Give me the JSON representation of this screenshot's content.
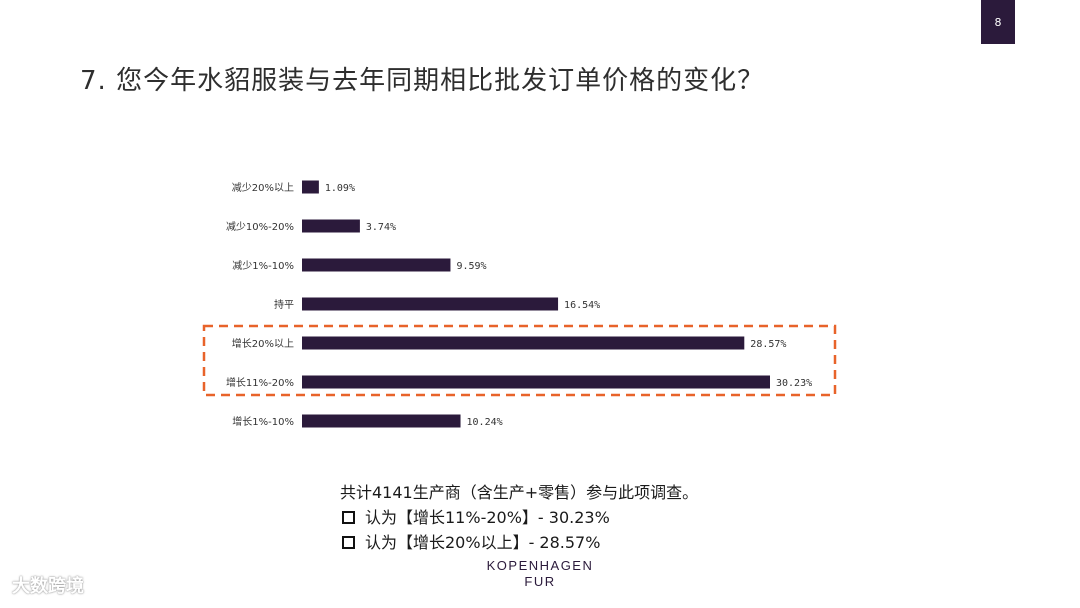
{
  "page": {
    "number": "8"
  },
  "slide": {
    "title": "7. 您今年水貂服装与去年同期相比批发订单价格的变化？"
  },
  "chart_data": {
    "type": "bar",
    "orientation": "horizontal",
    "categories": [
      "减少20%以上",
      "减少10%-20%",
      "减少1%-10%",
      "持平",
      "增长20%以上",
      "增长11%-20%",
      "增长1%-10%"
    ],
    "values": [
      1.09,
      3.74,
      9.59,
      16.54,
      28.57,
      30.23,
      10.24
    ],
    "labels": [
      "1.09%",
      "3.74%",
      "9.59%",
      "16.54%",
      "28.57%",
      "30.23%",
      "10.24%"
    ],
    "xlim": [
      0,
      30.23
    ],
    "grid": false,
    "bar_color": "#2b1a3b",
    "highlight": {
      "categories": [
        "增长20%以上",
        "增长11%-20%"
      ],
      "color": "#e8632a"
    }
  },
  "summary": {
    "line1": "共计4141生产商（含生产+零售）参与此项调查。",
    "bullets": [
      "认为【增长11%-20%】- 30.23%",
      "认为【增长20%以上】- 28.57%"
    ]
  },
  "logo": {
    "line1": "KOPENHAGEN",
    "line2": "FUR"
  },
  "watermark": {
    "text": "大数跨境"
  }
}
